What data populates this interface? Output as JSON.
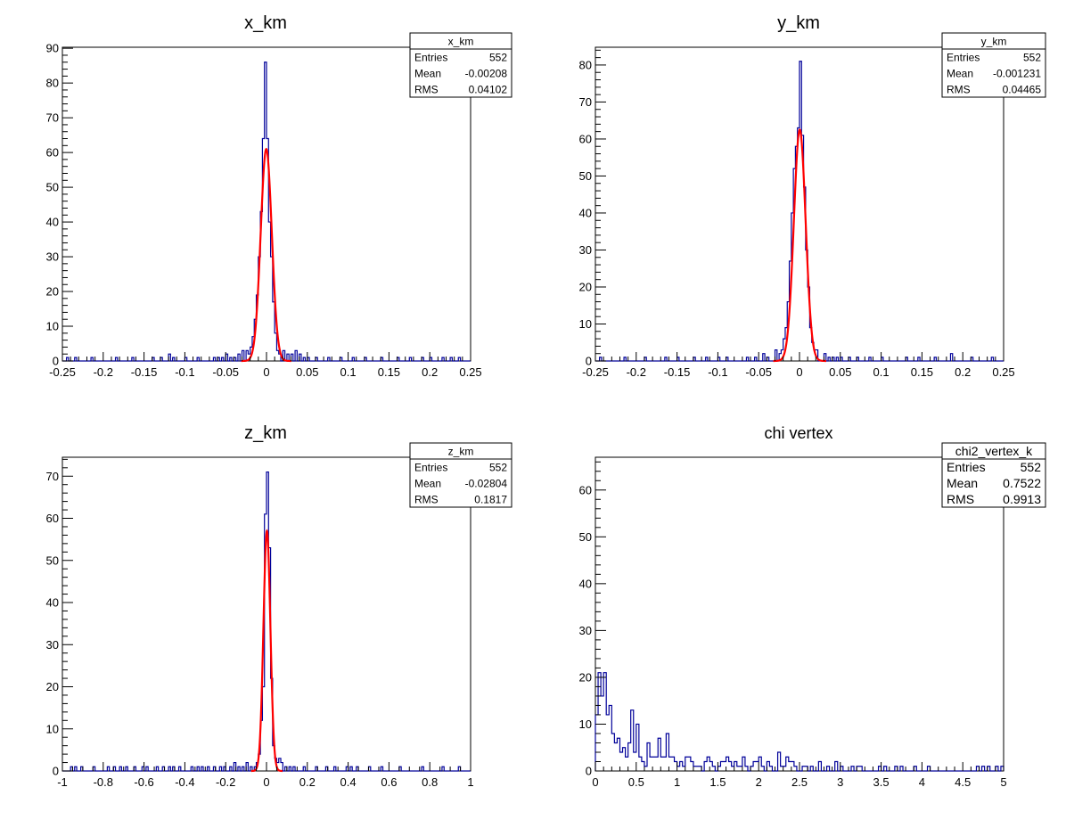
{
  "colors": {
    "histogram": "#000099",
    "fit": "#ff0000",
    "frame": "#000000"
  },
  "chart_data": [
    {
      "type": "bar",
      "title": "x_km",
      "xlim": [
        -0.25,
        0.25
      ],
      "ylim": [
        0,
        90.3
      ],
      "nbins": 200,
      "xticks": [
        "-0.25",
        "-0.2",
        "-0.15",
        "-0.1",
        "-0.05",
        "0",
        "0.05",
        "0.1",
        "0.15",
        "0.2",
        "0.25"
      ],
      "xtick_values": [
        -0.25,
        -0.2,
        -0.15,
        -0.1,
        -0.05,
        0,
        0.05,
        0.1,
        0.15,
        0.2,
        0.25
      ],
      "xminor": 0.01,
      "yticks": [
        "0",
        "10",
        "20",
        "30",
        "40",
        "50",
        "60",
        "70",
        "80",
        "90"
      ],
      "ytick_values": [
        0,
        10,
        20,
        30,
        40,
        50,
        60,
        70,
        80,
        90
      ],
      "yminor": 2,
      "bins": [
        [
          -0.02125,
          2
        ],
        [
          -0.01875,
          4
        ],
        [
          -0.01625,
          7
        ],
        [
          -0.01375,
          12
        ],
        [
          -0.01125,
          19
        ],
        [
          -0.00875,
          30
        ],
        [
          -0.00625,
          43
        ],
        [
          -0.00375,
          64
        ],
        [
          -0.00125,
          86
        ],
        [
          0.00125,
          64
        ],
        [
          0.00375,
          40
        ],
        [
          0.00625,
          30
        ],
        [
          0.00875,
          17
        ],
        [
          0.01125,
          8
        ],
        [
          0.01375,
          3
        ],
        [
          0.01625,
          2
        ],
        [
          -0.245,
          1
        ],
        [
          -0.235,
          1
        ],
        [
          -0.215,
          1
        ],
        [
          -0.185,
          1
        ],
        [
          -0.165,
          1
        ],
        [
          -0.14,
          1
        ],
        [
          -0.13,
          1
        ],
        [
          -0.12,
          2
        ],
        [
          -0.115,
          1
        ],
        [
          -0.1,
          1
        ],
        [
          -0.085,
          1
        ],
        [
          -0.065,
          1
        ],
        [
          -0.06,
          1
        ],
        [
          -0.055,
          1
        ],
        [
          -0.05,
          2
        ],
        [
          -0.045,
          1
        ],
        [
          -0.04,
          1
        ],
        [
          -0.035,
          2
        ],
        [
          -0.03,
          3
        ],
        [
          -0.025,
          3
        ],
        [
          0.02,
          3
        ],
        [
          0.025,
          2
        ],
        [
          0.03,
          2
        ],
        [
          0.035,
          3
        ],
        [
          0.04,
          2
        ],
        [
          0.045,
          1
        ],
        [
          0.05,
          1
        ],
        [
          0.06,
          1
        ],
        [
          0.075,
          1
        ],
        [
          0.09,
          1
        ],
        [
          0.105,
          1
        ],
        [
          0.12,
          1
        ],
        [
          0.14,
          1
        ],
        [
          0.16,
          1
        ],
        [
          0.175,
          1
        ],
        [
          0.19,
          1
        ],
        [
          0.2,
          1
        ],
        [
          0.215,
          1
        ],
        [
          0.225,
          1
        ],
        [
          0.235,
          1
        ]
      ],
      "fit": {
        "constant": 61,
        "mean": -0.0003,
        "sigma": 0.0068
      },
      "stats": {
        "name": "x_km",
        "rows": [
          {
            "label": "Entries",
            "value": "552"
          },
          {
            "label": "Mean",
            "value": "-0.00208"
          },
          {
            "label": "RMS",
            "value": "0.04102"
          }
        ]
      }
    },
    {
      "type": "bar",
      "title": "y_km",
      "xlim": [
        -0.25,
        0.25
      ],
      "ylim": [
        0,
        84.8
      ],
      "nbins": 200,
      "xticks": [
        "-0.25",
        "-0.2",
        "-0.15",
        "-0.1",
        "-0.05",
        "0",
        "0.05",
        "0.1",
        "0.15",
        "0.2",
        "0.25"
      ],
      "xtick_values": [
        -0.25,
        -0.2,
        -0.15,
        -0.1,
        -0.05,
        0,
        0.05,
        0.1,
        0.15,
        0.2,
        0.25
      ],
      "xminor": 0.01,
      "yticks": [
        "0",
        "10",
        "20",
        "30",
        "40",
        "50",
        "60",
        "70",
        "80"
      ],
      "ytick_values": [
        0,
        10,
        20,
        30,
        40,
        50,
        60,
        70,
        80
      ],
      "yminor": 2,
      "bins": [
        [
          -0.02375,
          2
        ],
        [
          -0.02125,
          3
        ],
        [
          -0.01875,
          6
        ],
        [
          -0.01625,
          9
        ],
        [
          -0.01375,
          16
        ],
        [
          -0.01125,
          27
        ],
        [
          -0.00875,
          40
        ],
        [
          -0.00625,
          52
        ],
        [
          -0.00375,
          58
        ],
        [
          -0.00125,
          63
        ],
        [
          0.00125,
          81
        ],
        [
          0.00375,
          61
        ],
        [
          0.00625,
          47
        ],
        [
          0.00875,
          30
        ],
        [
          0.01125,
          20
        ],
        [
          0.01375,
          9
        ],
        [
          0.01625,
          5
        ],
        [
          0.01875,
          3
        ],
        [
          -0.245,
          1
        ],
        [
          -0.215,
          1
        ],
        [
          -0.19,
          1
        ],
        [
          -0.165,
          1
        ],
        [
          -0.15,
          1
        ],
        [
          -0.13,
          1
        ],
        [
          -0.115,
          1
        ],
        [
          -0.1,
          1
        ],
        [
          -0.09,
          1
        ],
        [
          -0.065,
          1
        ],
        [
          -0.055,
          1
        ],
        [
          -0.045,
          2
        ],
        [
          -0.04,
          1
        ],
        [
          -0.03,
          2
        ],
        [
          -0.028,
          1
        ],
        [
          0.022,
          3
        ],
        [
          0.03,
          2
        ],
        [
          0.035,
          1
        ],
        [
          0.04,
          1
        ],
        [
          0.045,
          1
        ],
        [
          0.05,
          1
        ],
        [
          0.06,
          1
        ],
        [
          0.07,
          1
        ],
        [
          0.085,
          1
        ],
        [
          0.1,
          1
        ],
        [
          0.13,
          1
        ],
        [
          0.145,
          1
        ],
        [
          0.165,
          1
        ],
        [
          0.185,
          2
        ],
        [
          0.21,
          1
        ],
        [
          0.235,
          1
        ]
      ],
      "fit": {
        "constant": 62.5,
        "mean": 0.0003,
        "sigma": 0.0072
      },
      "stats": {
        "name": "y_km",
        "rows": [
          {
            "label": "Entries",
            "value": "552"
          },
          {
            "label": "Mean",
            "value": "-0.001231"
          },
          {
            "label": "RMS",
            "value": "0.04465"
          }
        ]
      }
    },
    {
      "type": "bar",
      "title": "z_km",
      "xlim": [
        -1,
        1
      ],
      "ylim": [
        0,
        74.5
      ],
      "nbins": 200,
      "xticks": [
        "-1",
        "-0.8",
        "-0.6",
        "-0.4",
        "-0.2",
        "0",
        "0.2",
        "0.4",
        "0.6",
        "0.8",
        "1"
      ],
      "xtick_values": [
        -1,
        -0.8,
        -0.6,
        -0.4,
        -0.2,
        0,
        0.2,
        0.4,
        0.6,
        0.8,
        1
      ],
      "xminor": 0.05,
      "yticks": [
        "0",
        "10",
        "20",
        "30",
        "40",
        "50",
        "60",
        "70"
      ],
      "ytick_values": [
        0,
        10,
        20,
        30,
        40,
        50,
        60,
        70
      ],
      "yminor": 2,
      "bins": [
        [
          -0.055,
          1
        ],
        [
          -0.045,
          2
        ],
        [
          -0.035,
          4
        ],
        [
          -0.025,
          12
        ],
        [
          -0.015,
          20
        ],
        [
          -0.005,
          61
        ],
        [
          0.005,
          71
        ],
        [
          0.015,
          53
        ],
        [
          0.025,
          22
        ],
        [
          0.035,
          6
        ],
        [
          0.045,
          3
        ],
        [
          0.055,
          2
        ],
        [
          0.065,
          3
        ],
        [
          0.075,
          2
        ],
        [
          -0.955,
          1
        ],
        [
          -0.935,
          1
        ],
        [
          -0.905,
          1
        ],
        [
          -0.845,
          1
        ],
        [
          -0.775,
          1
        ],
        [
          -0.745,
          1
        ],
        [
          -0.715,
          1
        ],
        [
          -0.685,
          1
        ],
        [
          -0.645,
          1
        ],
        [
          -0.605,
          1
        ],
        [
          -0.585,
          1
        ],
        [
          -0.535,
          1
        ],
        [
          -0.505,
          1
        ],
        [
          -0.475,
          1
        ],
        [
          -0.455,
          1
        ],
        [
          -0.425,
          1
        ],
        [
          -0.365,
          1
        ],
        [
          -0.335,
          1
        ],
        [
          -0.315,
          1
        ],
        [
          -0.285,
          1
        ],
        [
          -0.255,
          1
        ],
        [
          -0.225,
          1
        ],
        [
          -0.205,
          1
        ],
        [
          -0.175,
          1
        ],
        [
          -0.155,
          2
        ],
        [
          -0.135,
          1
        ],
        [
          -0.115,
          1
        ],
        [
          -0.095,
          2
        ],
        [
          -0.075,
          1
        ],
        [
          0.095,
          1
        ],
        [
          0.115,
          1
        ],
        [
          0.135,
          1
        ],
        [
          0.185,
          1
        ],
        [
          0.245,
          1
        ],
        [
          0.295,
          1
        ],
        [
          0.335,
          1
        ],
        [
          0.395,
          1
        ],
        [
          0.415,
          1
        ],
        [
          0.445,
          1
        ],
        [
          0.505,
          1
        ],
        [
          0.565,
          1
        ],
        [
          0.655,
          1
        ],
        [
          0.765,
          1
        ],
        [
          0.865,
          1
        ],
        [
          0.945,
          1
        ]
      ],
      "fit": {
        "constant": 57,
        "mean": 0.002,
        "sigma": 0.017
      },
      "stats": {
        "name": "z_km",
        "rows": [
          {
            "label": "Entries",
            "value": "552"
          },
          {
            "label": "Mean",
            "value": "-0.02804"
          },
          {
            "label": "RMS",
            "value": "0.1817"
          }
        ]
      }
    },
    {
      "type": "bar",
      "title": "chi vertex",
      "xlim": [
        0,
        5
      ],
      "ylim": [
        0,
        67
      ],
      "nbins": 150,
      "xticks": [
        "0",
        "0.5",
        "1",
        "1.5",
        "2",
        "2.5",
        "3",
        "3.5",
        "4",
        "4.5",
        "5"
      ],
      "xtick_values": [
        0,
        0.5,
        1,
        1.5,
        2,
        2.5,
        3,
        3.5,
        4,
        4.5,
        5
      ],
      "xminor": 0.1,
      "yticks": [
        "0",
        "10",
        "20",
        "30",
        "40",
        "50",
        "60"
      ],
      "ytick_values": [
        0,
        10,
        20,
        30,
        40,
        50,
        60
      ],
      "yminor": 2,
      "counts": [
        12,
        21,
        16,
        21,
        12,
        14,
        8,
        6,
        7,
        4,
        5,
        3,
        6,
        13,
        4,
        10,
        3,
        2,
        1,
        6,
        3,
        3,
        3,
        7,
        3,
        3,
        8,
        3,
        3,
        2,
        1,
        2,
        1,
        3,
        3,
        2,
        1,
        1,
        1,
        0,
        2,
        3,
        2,
        1,
        0,
        1,
        2,
        2,
        3,
        2,
        1,
        2,
        1,
        1,
        3,
        1,
        0,
        1,
        2,
        2,
        3,
        1,
        0,
        2,
        1,
        0,
        0,
        4,
        1,
        1,
        3,
        2,
        2,
        1,
        0,
        0,
        1,
        1,
        0,
        1,
        0,
        0,
        2,
        0,
        0,
        1,
        0,
        0,
        2,
        0,
        1,
        0,
        0,
        0,
        1,
        0,
        1,
        1,
        0,
        0,
        0,
        0,
        0,
        0,
        1,
        0,
        1,
        0,
        0,
        0,
        1,
        0,
        1,
        0,
        0,
        0,
        0,
        1,
        0,
        0,
        0,
        0,
        1,
        0,
        0,
        0,
        0,
        0,
        0,
        0,
        0,
        0,
        0,
        0,
        0,
        0,
        0,
        0,
        0,
        0,
        1,
        0,
        1,
        0,
        1,
        0,
        0,
        1,
        0,
        1
      ],
      "stats": {
        "name": "chi2_vertex_k",
        "rows": [
          {
            "label": "Entries",
            "value": "552"
          },
          {
            "label": "Mean",
            "value": "0.7522"
          },
          {
            "label": "RMS",
            "value": "0.9913"
          }
        ]
      }
    }
  ]
}
